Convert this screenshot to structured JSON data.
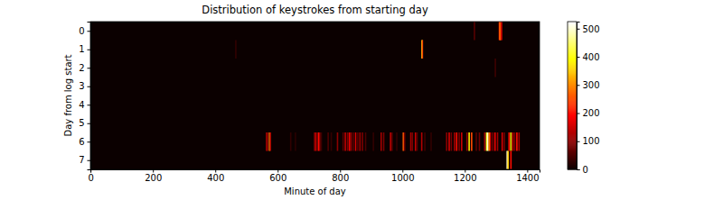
{
  "chart_data": {
    "type": "heatmap",
    "title": "Distribution of keystrokes from starting day",
    "x_label": "Minute of day",
    "y_label": "Day from log start",
    "xlim": [
      -0.5,
      1439.5
    ],
    "xticks": [
      0,
      200,
      400,
      600,
      800,
      1000,
      1200,
      1400
    ],
    "ylim": [
      -0.5,
      7.5
    ],
    "yticks": [
      0,
      1,
      2,
      3,
      4,
      5,
      6,
      7
    ],
    "colorbar": {
      "range": [
        0,
        525
      ],
      "ticks": [
        0,
        100,
        200,
        300,
        400,
        500
      ]
    },
    "cells": [
      {
        "y": 0,
        "x": 1229,
        "value": 60
      },
      {
        "y": 0,
        "x": 1309,
        "value": 200
      },
      {
        "y": 0,
        "x": 1311,
        "value": 300
      },
      {
        "y": 0,
        "x": 1313,
        "value": 250
      },
      {
        "y": 0,
        "x": 1316,
        "value": 150
      },
      {
        "y": 1,
        "x": 464,
        "value": 30
      },
      {
        "y": 1,
        "x": 1061,
        "value": 400
      },
      {
        "y": 1,
        "x": 1062,
        "value": 250
      },
      {
        "y": 2,
        "x": 1296,
        "value": 40
      },
      {
        "y": 6,
        "x": 563,
        "value": 150
      },
      {
        "y": 6,
        "x": 566,
        "value": 90
      },
      {
        "y": 6,
        "x": 572,
        "value": 300
      },
      {
        "y": 6,
        "x": 575,
        "value": 120
      },
      {
        "y": 6,
        "x": 640,
        "value": 30
      },
      {
        "y": 6,
        "x": 655,
        "value": 25
      },
      {
        "y": 6,
        "x": 716,
        "value": 80
      },
      {
        "y": 6,
        "x": 720,
        "value": 150
      },
      {
        "y": 6,
        "x": 724,
        "value": 60
      },
      {
        "y": 6,
        "x": 729,
        "value": 200
      },
      {
        "y": 6,
        "x": 733,
        "value": 120
      },
      {
        "y": 6,
        "x": 738,
        "value": 40
      },
      {
        "y": 6,
        "x": 760,
        "value": 50
      },
      {
        "y": 6,
        "x": 770,
        "value": 30
      },
      {
        "y": 6,
        "x": 790,
        "value": 100
      },
      {
        "y": 6,
        "x": 808,
        "value": 60
      },
      {
        "y": 6,
        "x": 815,
        "value": 140
      },
      {
        "y": 6,
        "x": 822,
        "value": 90
      },
      {
        "y": 6,
        "x": 828,
        "value": 180
      },
      {
        "y": 6,
        "x": 833,
        "value": 120
      },
      {
        "y": 6,
        "x": 840,
        "value": 70
      },
      {
        "y": 6,
        "x": 848,
        "value": 160
      },
      {
        "y": 6,
        "x": 855,
        "value": 60
      },
      {
        "y": 6,
        "x": 862,
        "value": 110
      },
      {
        "y": 6,
        "x": 870,
        "value": 90
      },
      {
        "y": 6,
        "x": 880,
        "value": 50
      },
      {
        "y": 6,
        "x": 905,
        "value": 30
      },
      {
        "y": 6,
        "x": 930,
        "value": 120
      },
      {
        "y": 6,
        "x": 938,
        "value": 90
      },
      {
        "y": 6,
        "x": 960,
        "value": 140
      },
      {
        "y": 6,
        "x": 965,
        "value": 60
      },
      {
        "y": 6,
        "x": 980,
        "value": 30
      },
      {
        "y": 6,
        "x": 1001,
        "value": 260
      },
      {
        "y": 6,
        "x": 1005,
        "value": 80
      },
      {
        "y": 6,
        "x": 1025,
        "value": 120
      },
      {
        "y": 6,
        "x": 1030,
        "value": 90
      },
      {
        "y": 6,
        "x": 1040,
        "value": 150
      },
      {
        "y": 6,
        "x": 1045,
        "value": 60
      },
      {
        "y": 6,
        "x": 1060,
        "value": 130
      },
      {
        "y": 6,
        "x": 1070,
        "value": 40
      },
      {
        "y": 6,
        "x": 1090,
        "value": 30
      },
      {
        "y": 6,
        "x": 1140,
        "value": 100
      },
      {
        "y": 6,
        "x": 1148,
        "value": 160
      },
      {
        "y": 6,
        "x": 1155,
        "value": 80
      },
      {
        "y": 6,
        "x": 1165,
        "value": 120
      },
      {
        "y": 6,
        "x": 1172,
        "value": 200
      },
      {
        "y": 6,
        "x": 1180,
        "value": 90
      },
      {
        "y": 6,
        "x": 1188,
        "value": 150
      },
      {
        "y": 6,
        "x": 1205,
        "value": 100
      },
      {
        "y": 6,
        "x": 1212,
        "value": 380
      },
      {
        "y": 6,
        "x": 1220,
        "value": 250
      },
      {
        "y": 6,
        "x": 1235,
        "value": 60
      },
      {
        "y": 6,
        "x": 1245,
        "value": 80
      },
      {
        "y": 6,
        "x": 1262,
        "value": 120
      },
      {
        "y": 6,
        "x": 1268,
        "value": 420
      },
      {
        "y": 6,
        "x": 1272,
        "value": 500
      },
      {
        "y": 6,
        "x": 1276,
        "value": 300
      },
      {
        "y": 6,
        "x": 1280,
        "value": 160
      },
      {
        "y": 6,
        "x": 1288,
        "value": 90
      },
      {
        "y": 6,
        "x": 1295,
        "value": 180
      },
      {
        "y": 6,
        "x": 1303,
        "value": 120
      },
      {
        "y": 6,
        "x": 1318,
        "value": 160
      },
      {
        "y": 6,
        "x": 1325,
        "value": 80
      },
      {
        "y": 6,
        "x": 1340,
        "value": 200
      },
      {
        "y": 6,
        "x": 1346,
        "value": 380
      },
      {
        "y": 6,
        "x": 1352,
        "value": 150
      },
      {
        "y": 6,
        "x": 1358,
        "value": 90
      },
      {
        "y": 6,
        "x": 1365,
        "value": 200
      },
      {
        "y": 6,
        "x": 1372,
        "value": 120
      },
      {
        "y": 7,
        "x": 1334,
        "value": 500
      },
      {
        "y": 7,
        "x": 1337,
        "value": 350
      },
      {
        "y": 7,
        "x": 1346,
        "value": 200
      }
    ]
  }
}
